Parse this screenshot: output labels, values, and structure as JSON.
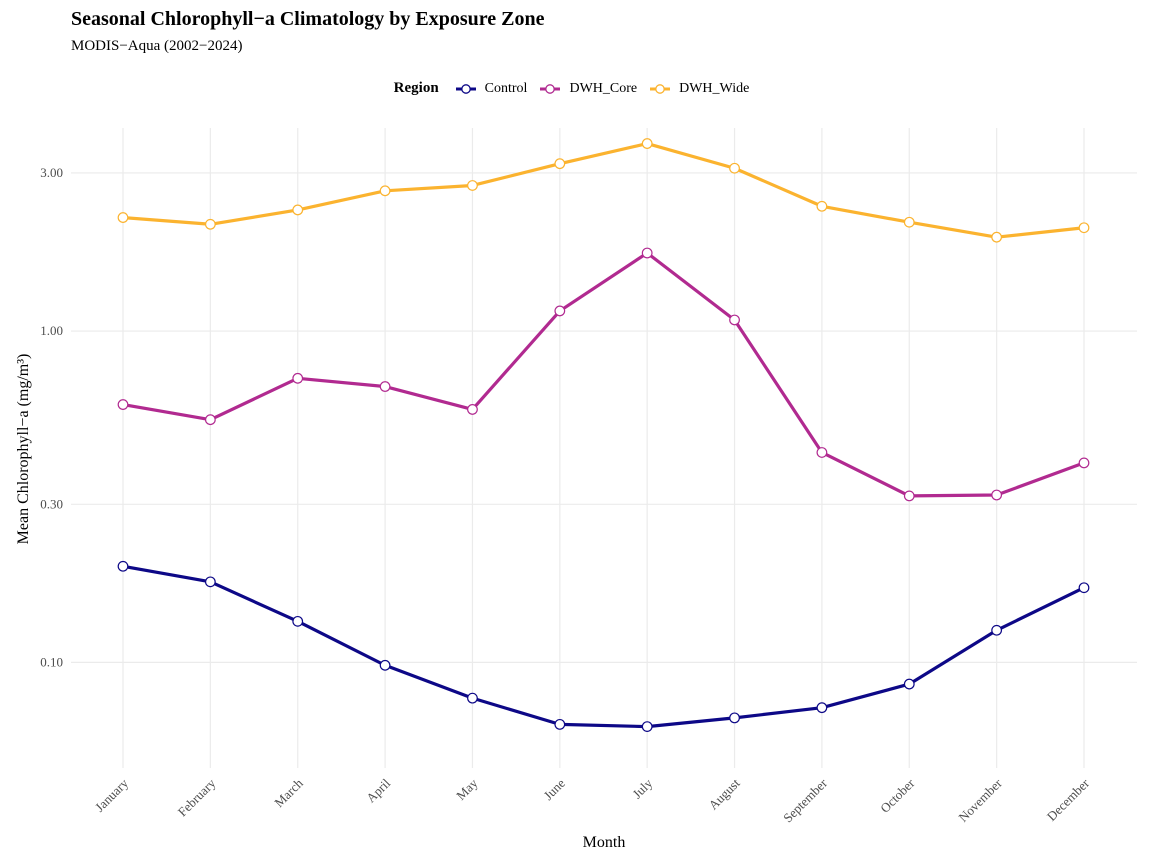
{
  "chart_data": {
    "type": "line",
    "title": "Seasonal Chlorophyll−a Climatology by Exposure Zone",
    "subtitle": "MODIS−Aqua (2002−2024)",
    "xlabel": "Month",
    "ylabel": "Mean Chlorophyll−a (mg/m³)",
    "y_scale": "log",
    "ylim": [
      0.048,
      4.1
    ],
    "y_ticks": [
      0.1,
      0.3,
      1.0,
      3.0
    ],
    "y_tick_labels": [
      "0.10",
      "0.30",
      "1.00",
      "3.00"
    ],
    "grid": true,
    "legend": {
      "title": "Region",
      "position": "top"
    },
    "categories": [
      "January",
      "February",
      "March",
      "April",
      "May",
      "June",
      "July",
      "August",
      "September",
      "October",
      "November",
      "December"
    ],
    "series": [
      {
        "name": "Control",
        "color": "#0d0887",
        "values": [
          0.195,
          0.175,
          0.133,
          0.098,
          0.078,
          0.065,
          0.064,
          0.068,
          0.073,
          0.086,
          0.125,
          0.168
        ]
      },
      {
        "name": "DWH_Core",
        "color": "#b12a90",
        "values": [
          0.6,
          0.54,
          0.72,
          0.68,
          0.58,
          1.15,
          1.72,
          1.08,
          0.43,
          0.318,
          0.32,
          0.4
        ]
      },
      {
        "name": "DWH_Wide",
        "color": "#fbb32f",
        "values": [
          2.2,
          2.1,
          2.32,
          2.65,
          2.75,
          3.2,
          3.68,
          3.1,
          2.38,
          2.13,
          1.92,
          2.05
        ]
      }
    ]
  }
}
